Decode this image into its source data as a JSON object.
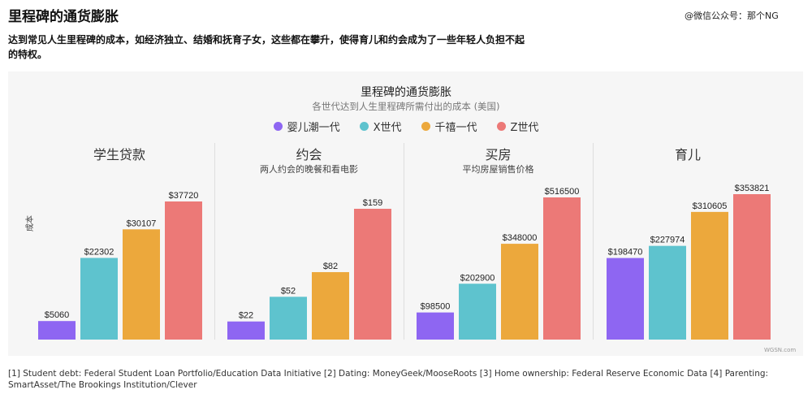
{
  "header": {
    "title": "里程碑的通货膨胀",
    "watermark": "@微信公众号：那个NG",
    "subtitle": "达到常见人生里程碑的成本，如经济独立、结婚和抚育子女，这些都在攀升，使得育儿和约会成为了一些年轻人负担不起的特权。"
  },
  "chart_data": {
    "type": "bar",
    "title": "里程碑的通货膨胀",
    "subtitle": "各世代达到人生里程碑所需付出的成本 (美国)",
    "ylabel": "成本",
    "xlabel": "",
    "legend_position": "top",
    "grid": false,
    "series": [
      {
        "name": "婴儿潮一代",
        "color": "#8e66f2"
      },
      {
        "name": "X世代",
        "color": "#5ec3ce"
      },
      {
        "name": "千禧一代",
        "color": "#eca83c"
      },
      {
        "name": "Z世代",
        "color": "#ec7977"
      }
    ],
    "panels": [
      {
        "title": "学生贷款",
        "subtitle": "",
        "values": [
          5060,
          22302,
          30107,
          37720
        ],
        "labels": [
          "$5060",
          "$22302",
          "$30107",
          "$37720"
        ]
      },
      {
        "title": "约会",
        "subtitle": "两人约会的晚餐和看电影",
        "values": [
          22,
          52,
          82,
          159
        ],
        "labels": [
          "$22",
          "$52",
          "$82",
          "$159"
        ]
      },
      {
        "title": "买房",
        "subtitle": "平均房屋销售价格",
        "values": [
          98500,
          202900,
          348000,
          516500
        ],
        "labels": [
          "$98500",
          "$202900",
          "$348000",
          "$516500"
        ]
      },
      {
        "title": "育儿",
        "subtitle": "",
        "values": [
          198470,
          227974,
          310605,
          353821
        ],
        "labels": [
          "$198470",
          "$227974",
          "$310605",
          "$353821"
        ]
      }
    ]
  },
  "footer": {
    "credit": "WGSN.com",
    "sources": "[1] Student debt: Federal Student Loan Portfolio/Education Data Initiative [2] Dating: MoneyGeek/MooseRoots [3] Home ownership: Federal Reserve Economic Data [4] Parenting: SmartAsset/The Brookings Institution/Clever"
  }
}
